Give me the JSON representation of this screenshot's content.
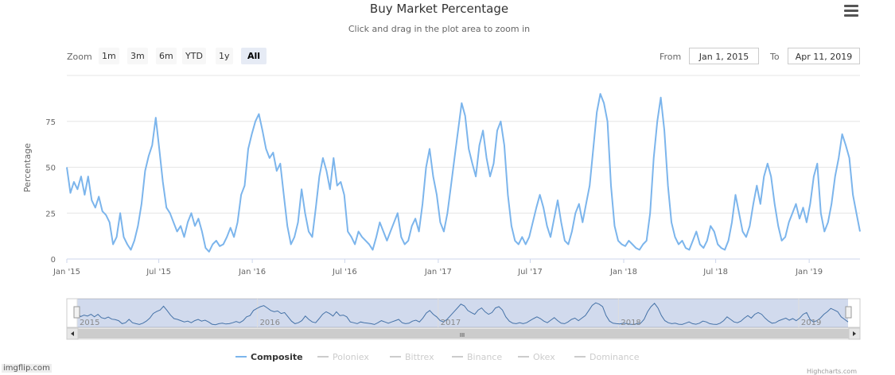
{
  "chart": {
    "title": "Buy Market Percentage",
    "subtitle": "Click and drag in the plot area to zoom in",
    "credits": "Highcharts.com"
  },
  "toolbar": {
    "zoom_label": "Zoom",
    "zoom_buttons": [
      "1m",
      "3m",
      "6m",
      "YTD",
      "1y",
      "All"
    ],
    "active_zoom": "All",
    "from_label": "From",
    "from_value": "Jan 1, 2015",
    "to_label": "To",
    "to_value": "Apr 11, 2019"
  },
  "navigator": {
    "year_labels": [
      "2015",
      "2016",
      "2017",
      "2018",
      "2019"
    ],
    "scroll_grip": "III"
  },
  "watermark": "imgflip.com",
  "menu_icon": "hamburger-menu-icon",
  "chart_data": {
    "type": "line",
    "title": "Buy Market Percentage",
    "subtitle": "Click and drag in the plot area to zoom in",
    "ylabel": "Percentage",
    "xlabel": "",
    "ylim": [
      0,
      100
    ],
    "yticks": [
      0,
      25,
      50,
      75
    ],
    "xlim": [
      "2015-01-01",
      "2019-04-11"
    ],
    "x_ticks": [
      {
        "label": "Jan '15",
        "date": "2015-01-01"
      },
      {
        "label": "Jul '15",
        "date": "2015-07-01"
      },
      {
        "label": "Jan '16",
        "date": "2016-01-01"
      },
      {
        "label": "Jul '16",
        "date": "2016-07-01"
      },
      {
        "label": "Jan '17",
        "date": "2017-01-01"
      },
      {
        "label": "Jul '17",
        "date": "2017-07-01"
      },
      {
        "label": "Jan '18",
        "date": "2018-01-01"
      },
      {
        "label": "Jul '18",
        "date": "2018-07-01"
      },
      {
        "label": "Jan '19",
        "date": "2019-01-01"
      }
    ],
    "grid": true,
    "legend_position": "bottom",
    "series": [
      {
        "name": "Composite",
        "color": "#7cb5ec",
        "visible": true,
        "points": [
          [
            "2015-01-01",
            50
          ],
          [
            "2015-01-08",
            36
          ],
          [
            "2015-01-15",
            42
          ],
          [
            "2015-01-22",
            38
          ],
          [
            "2015-01-29",
            45
          ],
          [
            "2015-02-05",
            35
          ],
          [
            "2015-02-12",
            45
          ],
          [
            "2015-02-19",
            32
          ],
          [
            "2015-02-26",
            28
          ],
          [
            "2015-03-05",
            34
          ],
          [
            "2015-03-12",
            26
          ],
          [
            "2015-03-19",
            24
          ],
          [
            "2015-03-26",
            20
          ],
          [
            "2015-04-02",
            8
          ],
          [
            "2015-04-09",
            12
          ],
          [
            "2015-04-16",
            25
          ],
          [
            "2015-04-23",
            12
          ],
          [
            "2015-04-30",
            8
          ],
          [
            "2015-05-07",
            5
          ],
          [
            "2015-05-14",
            10
          ],
          [
            "2015-05-21",
            18
          ],
          [
            "2015-05-28",
            30
          ],
          [
            "2015-06-04",
            48
          ],
          [
            "2015-06-11",
            56
          ],
          [
            "2015-06-18",
            62
          ],
          [
            "2015-06-25",
            77
          ],
          [
            "2015-07-02",
            60
          ],
          [
            "2015-07-09",
            42
          ],
          [
            "2015-07-16",
            28
          ],
          [
            "2015-07-23",
            25
          ],
          [
            "2015-07-30",
            20
          ],
          [
            "2015-08-06",
            15
          ],
          [
            "2015-08-13",
            18
          ],
          [
            "2015-08-20",
            12
          ],
          [
            "2015-08-27",
            20
          ],
          [
            "2015-09-03",
            25
          ],
          [
            "2015-09-10",
            18
          ],
          [
            "2015-09-17",
            22
          ],
          [
            "2015-09-24",
            15
          ],
          [
            "2015-10-01",
            6
          ],
          [
            "2015-10-08",
            4
          ],
          [
            "2015-10-15",
            8
          ],
          [
            "2015-10-22",
            10
          ],
          [
            "2015-10-29",
            7
          ],
          [
            "2015-11-05",
            8
          ],
          [
            "2015-11-12",
            12
          ],
          [
            "2015-11-19",
            17
          ],
          [
            "2015-11-26",
            12
          ],
          [
            "2015-12-03",
            20
          ],
          [
            "2015-12-10",
            35
          ],
          [
            "2015-12-17",
            40
          ],
          [
            "2015-12-24",
            60
          ],
          [
            "2015-12-31",
            68
          ],
          [
            "2016-01-07",
            75
          ],
          [
            "2016-01-14",
            79
          ],
          [
            "2016-01-21",
            70
          ],
          [
            "2016-01-28",
            60
          ],
          [
            "2016-02-04",
            55
          ],
          [
            "2016-02-11",
            58
          ],
          [
            "2016-02-18",
            48
          ],
          [
            "2016-02-25",
            52
          ],
          [
            "2016-03-03",
            35
          ],
          [
            "2016-03-10",
            18
          ],
          [
            "2016-03-17",
            8
          ],
          [
            "2016-03-24",
            12
          ],
          [
            "2016-03-31",
            20
          ],
          [
            "2016-04-07",
            38
          ],
          [
            "2016-04-14",
            25
          ],
          [
            "2016-04-21",
            15
          ],
          [
            "2016-04-28",
            12
          ],
          [
            "2016-05-05",
            28
          ],
          [
            "2016-05-12",
            45
          ],
          [
            "2016-05-19",
            55
          ],
          [
            "2016-05-26",
            48
          ],
          [
            "2016-06-02",
            38
          ],
          [
            "2016-06-09",
            55
          ],
          [
            "2016-06-16",
            40
          ],
          [
            "2016-06-23",
            42
          ],
          [
            "2016-06-30",
            35
          ],
          [
            "2016-07-07",
            15
          ],
          [
            "2016-07-14",
            12
          ],
          [
            "2016-07-21",
            8
          ],
          [
            "2016-07-28",
            15
          ],
          [
            "2016-08-04",
            12
          ],
          [
            "2016-08-11",
            10
          ],
          [
            "2016-08-18",
            8
          ],
          [
            "2016-08-25",
            5
          ],
          [
            "2016-09-01",
            12
          ],
          [
            "2016-09-08",
            20
          ],
          [
            "2016-09-15",
            15
          ],
          [
            "2016-09-22",
            10
          ],
          [
            "2016-09-29",
            15
          ],
          [
            "2016-10-06",
            20
          ],
          [
            "2016-10-13",
            25
          ],
          [
            "2016-10-20",
            12
          ],
          [
            "2016-10-27",
            8
          ],
          [
            "2016-11-03",
            10
          ],
          [
            "2016-11-10",
            18
          ],
          [
            "2016-11-17",
            22
          ],
          [
            "2016-11-24",
            15
          ],
          [
            "2016-12-01",
            30
          ],
          [
            "2016-12-08",
            50
          ],
          [
            "2016-12-15",
            60
          ],
          [
            "2016-12-22",
            45
          ],
          [
            "2016-12-29",
            35
          ],
          [
            "2017-01-05",
            20
          ],
          [
            "2017-01-12",
            15
          ],
          [
            "2017-01-19",
            25
          ],
          [
            "2017-01-26",
            40
          ],
          [
            "2017-02-02",
            55
          ],
          [
            "2017-02-09",
            70
          ],
          [
            "2017-02-16",
            85
          ],
          [
            "2017-02-23",
            78
          ],
          [
            "2017-03-02",
            60
          ],
          [
            "2017-03-09",
            52
          ],
          [
            "2017-03-16",
            45
          ],
          [
            "2017-03-23",
            62
          ],
          [
            "2017-03-30",
            70
          ],
          [
            "2017-04-06",
            55
          ],
          [
            "2017-04-13",
            45
          ],
          [
            "2017-04-20",
            52
          ],
          [
            "2017-04-27",
            70
          ],
          [
            "2017-05-04",
            75
          ],
          [
            "2017-05-11",
            62
          ],
          [
            "2017-05-18",
            35
          ],
          [
            "2017-05-25",
            18
          ],
          [
            "2017-06-01",
            10
          ],
          [
            "2017-06-08",
            8
          ],
          [
            "2017-06-15",
            12
          ],
          [
            "2017-06-22",
            8
          ],
          [
            "2017-06-29",
            12
          ],
          [
            "2017-07-06",
            20
          ],
          [
            "2017-07-13",
            28
          ],
          [
            "2017-07-20",
            35
          ],
          [
            "2017-07-27",
            28
          ],
          [
            "2017-08-03",
            18
          ],
          [
            "2017-08-10",
            12
          ],
          [
            "2017-08-17",
            22
          ],
          [
            "2017-08-24",
            32
          ],
          [
            "2017-08-31",
            20
          ],
          [
            "2017-09-07",
            10
          ],
          [
            "2017-09-14",
            8
          ],
          [
            "2017-09-21",
            15
          ],
          [
            "2017-09-28",
            25
          ],
          [
            "2017-10-05",
            30
          ],
          [
            "2017-10-12",
            20
          ],
          [
            "2017-10-19",
            30
          ],
          [
            "2017-10-26",
            40
          ],
          [
            "2017-11-02",
            60
          ],
          [
            "2017-11-09",
            80
          ],
          [
            "2017-11-16",
            90
          ],
          [
            "2017-11-23",
            85
          ],
          [
            "2017-11-30",
            75
          ],
          [
            "2017-12-07",
            40
          ],
          [
            "2017-12-14",
            18
          ],
          [
            "2017-12-21",
            10
          ],
          [
            "2017-12-28",
            8
          ],
          [
            "2018-01-04",
            7
          ],
          [
            "2018-01-11",
            10
          ],
          [
            "2018-01-18",
            8
          ],
          [
            "2018-01-25",
            6
          ],
          [
            "2018-02-01",
            5
          ],
          [
            "2018-02-08",
            8
          ],
          [
            "2018-02-15",
            10
          ],
          [
            "2018-02-22",
            25
          ],
          [
            "2018-03-01",
            55
          ],
          [
            "2018-03-08",
            75
          ],
          [
            "2018-03-15",
            88
          ],
          [
            "2018-03-22",
            70
          ],
          [
            "2018-03-29",
            40
          ],
          [
            "2018-04-05",
            20
          ],
          [
            "2018-04-12",
            12
          ],
          [
            "2018-04-19",
            8
          ],
          [
            "2018-04-26",
            10
          ],
          [
            "2018-05-03",
            6
          ],
          [
            "2018-05-10",
            5
          ],
          [
            "2018-05-17",
            10
          ],
          [
            "2018-05-24",
            15
          ],
          [
            "2018-05-31",
            8
          ],
          [
            "2018-06-07",
            6
          ],
          [
            "2018-06-14",
            10
          ],
          [
            "2018-06-21",
            18
          ],
          [
            "2018-06-28",
            15
          ],
          [
            "2018-07-05",
            8
          ],
          [
            "2018-07-12",
            6
          ],
          [
            "2018-07-19",
            5
          ],
          [
            "2018-07-26",
            10
          ],
          [
            "2018-08-02",
            20
          ],
          [
            "2018-08-09",
            35
          ],
          [
            "2018-08-16",
            25
          ],
          [
            "2018-08-23",
            15
          ],
          [
            "2018-08-30",
            12
          ],
          [
            "2018-09-06",
            18
          ],
          [
            "2018-09-13",
            30
          ],
          [
            "2018-09-20",
            40
          ],
          [
            "2018-09-27",
            30
          ],
          [
            "2018-10-04",
            45
          ],
          [
            "2018-10-11",
            52
          ],
          [
            "2018-10-18",
            45
          ],
          [
            "2018-10-25",
            30
          ],
          [
            "2018-11-01",
            18
          ],
          [
            "2018-11-08",
            10
          ],
          [
            "2018-11-15",
            12
          ],
          [
            "2018-11-22",
            20
          ],
          [
            "2018-11-29",
            25
          ],
          [
            "2018-12-06",
            30
          ],
          [
            "2018-12-13",
            22
          ],
          [
            "2018-12-20",
            28
          ],
          [
            "2018-12-27",
            20
          ],
          [
            "2019-01-03",
            30
          ],
          [
            "2019-01-10",
            45
          ],
          [
            "2019-01-17",
            52
          ],
          [
            "2019-01-24",
            25
          ],
          [
            "2019-01-31",
            15
          ],
          [
            "2019-02-07",
            20
          ],
          [
            "2019-02-14",
            30
          ],
          [
            "2019-02-21",
            45
          ],
          [
            "2019-02-28",
            55
          ],
          [
            "2019-03-07",
            68
          ],
          [
            "2019-03-14",
            62
          ],
          [
            "2019-03-21",
            55
          ],
          [
            "2019-03-28",
            35
          ],
          [
            "2019-04-04",
            25
          ],
          [
            "2019-04-11",
            15
          ]
        ]
      },
      {
        "name": "Poloniex",
        "color": "#cccccc",
        "visible": false
      },
      {
        "name": "Bittrex",
        "color": "#cccccc",
        "visible": false
      },
      {
        "name": "Binance",
        "color": "#cccccc",
        "visible": false
      },
      {
        "name": "Okex",
        "color": "#cccccc",
        "visible": false
      },
      {
        "name": "Dominance",
        "color": "#cccccc",
        "visible": false
      }
    ]
  }
}
